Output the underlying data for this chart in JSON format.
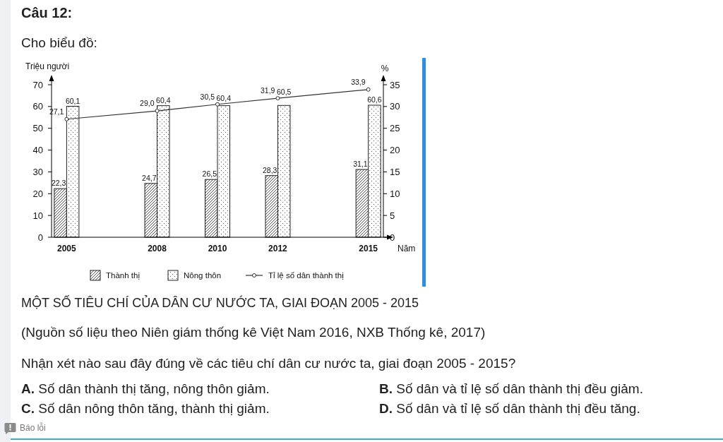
{
  "chart_data": {
    "type": "bar",
    "title": "MỘT SỐ TIÊU CHÍ CỦA DÂN CƯ NƯỚC TA, GIAI ĐOẠN 2005 - 2015",
    "xlabel": "Năm",
    "ylabel": "Triệu người",
    "y2label": "%",
    "x": [
      2005,
      2008,
      2010,
      2012,
      2015
    ],
    "xlim": [
      2004.5,
      2015.5
    ],
    "xticks": [
      2005,
      2008,
      2010,
      2012,
      2015
    ],
    "ylim": [
      0,
      70
    ],
    "yticks": [
      0,
      10,
      20,
      30,
      40,
      50,
      60,
      70
    ],
    "y2lim": [
      0,
      35
    ],
    "y2ticks": [
      0,
      5,
      10,
      15,
      20,
      25,
      30,
      35
    ],
    "series": [
      {
        "name": "Thành thị",
        "color": "#222222",
        "values": [
          22.3,
          24.7,
          26.5,
          28.3,
          31.1
        ],
        "value_labels": [
          "22,3",
          "24,7",
          "26,5",
          "28,3",
          "31,1"
        ]
      },
      {
        "name": "Nông thôn",
        "color": "#222222",
        "values": [
          60.1,
          60.4,
          60.4,
          60.5,
          60.6
        ],
        "value_labels": [
          "60,1",
          "60,4",
          "60,4",
          "60,5",
          "60,6"
        ]
      },
      {
        "name": "Tỉ lệ số dân thành thị",
        "type": "line",
        "axis": "y2",
        "color": "#333333",
        "values": [
          27.1,
          29.0,
          30.5,
          31.9,
          33.9
        ],
        "value_labels": [
          "27,1",
          "29,0",
          "30,5",
          "31,9",
          "33,9"
        ]
      }
    ],
    "marker": "circle",
    "legend": "bottom",
    "annotations": [
      "Câu 12:",
      "Cho biểu đồ:",
      "(Nguồn số liệu theo Niên giám thống kê Việt Nam 2016, NXB Thống kê, 2017)",
      "Nhận xét nào sau đây đúng về các tiêu chí dân cư nước ta, giai đoạn 2005 - 2015?",
      "A. Số dân thành thị tăng, nông thôn giảm.",
      "B. Số dân và tỉ lệ số dân thành thị đều giảm.",
      "C. Số dân nông thôn tăng, thành thị giảm.",
      "D. Số dân và tỉ lệ số dân thành thị đều tăng.",
      "Báo lỗi"
    ]
  }
}
